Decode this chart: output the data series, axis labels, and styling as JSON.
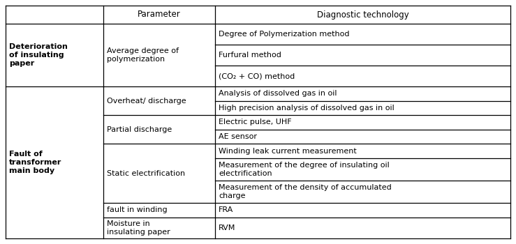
{
  "figsize": [
    7.39,
    3.5
  ],
  "dpi": 100,
  "bg_color": "#ffffff",
  "line_color": "#000000",
  "text_color": "#000000",
  "header_labels": [
    "",
    "Parameter",
    "Diagnostic technology"
  ],
  "col2_r1_items": [
    "Degree of Polymerization method",
    "Furfural method",
    "(CO₂ + CO) method"
  ],
  "col0_r1": "Deterioration\nof insulating\npaper",
  "col1_r1": "Average degree of\npolymerization",
  "col0_r2": "Fault of\ntransformer\nmain body",
  "col1_groups": [
    {
      "label": "Overheat/ discharge",
      "n_items": 2
    },
    {
      "label": "Partial discharge",
      "n_items": 2
    },
    {
      "label": "Static electrification",
      "n_items": 3
    },
    {
      "label": "fault in winding",
      "n_items": 1
    },
    {
      "label": "Moisture in\ninsulating paper",
      "n_items": 1
    }
  ],
  "col2_r2_items": [
    "Analysis of dissolved gas in oil",
    "High precision analysis of dissolved gas in oil",
    "Electric pulse, UHF",
    "AE sensor",
    "Winding leak current measurement",
    "Measurement of the degree of insulating oil\nelectrification",
    "Measurement of the density of accumulated\ncharge",
    "FRA",
    "RVM"
  ],
  "font_size": 8.0,
  "header_font_size": 8.5,
  "font_family": "DejaVu Sans"
}
